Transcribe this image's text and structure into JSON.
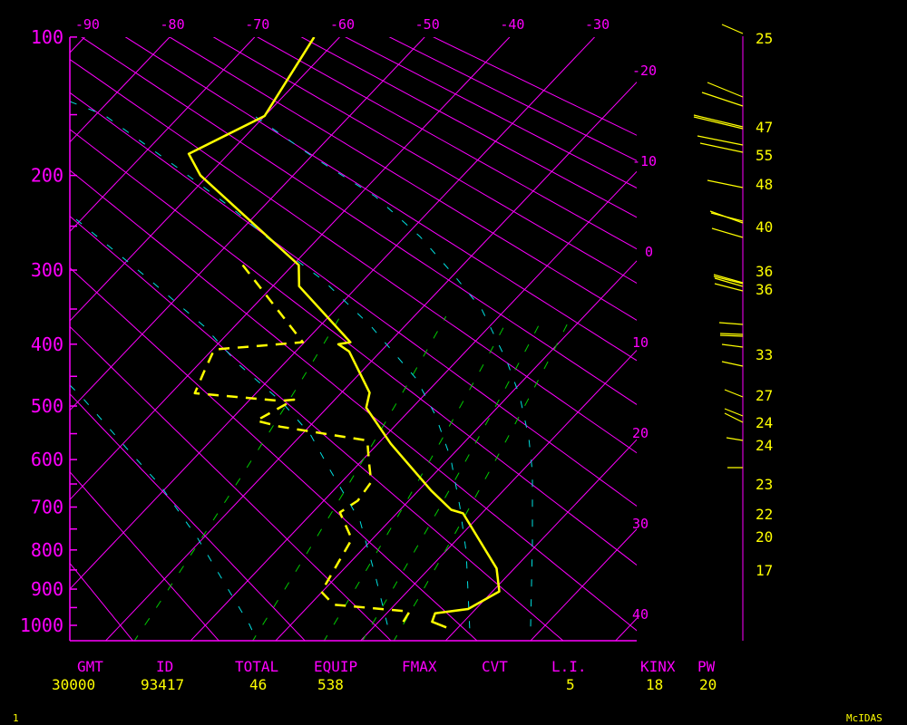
{
  "chart_data": {
    "type": "line",
    "title": "",
    "xlabel": "",
    "ylabel": "",
    "yscale": "pressure (skew-T)",
    "ylim": [
      1000,
      100
    ],
    "grid": true,
    "pressure_ticks": [
      100,
      200,
      300,
      400,
      500,
      600,
      700,
      800,
      900,
      1000
    ],
    "pressure_minor_ticks": [
      150,
      250,
      350,
      450,
      550,
      650,
      750,
      850,
      950
    ],
    "temperature_ticks_top": [
      -90,
      -80,
      -70,
      -60,
      -50,
      -40,
      -30
    ],
    "temperature_ticks_right": [
      -20,
      -10,
      0,
      10,
      20,
      30,
      40
    ],
    "colors": {
      "grid": "#ff00ff",
      "profile": "#ffff00",
      "moist_adiabat": "#00e0e0",
      "mixing_ratio": "#00cc00"
    },
    "series": [
      {
        "line_style": "solid",
        "color": "#ffff00",
        "points": [
          {
            "p": 100,
            "t": -63.0
          },
          {
            "p": 151,
            "t": -60.0
          },
          {
            "p": 181,
            "t": -64.7
          },
          {
            "p": 200,
            "t": -60.9
          },
          {
            "p": 294,
            "t": -39.3
          },
          {
            "p": 320,
            "t": -36.9
          },
          {
            "p": 397,
            "t": -24.6
          },
          {
            "p": 400,
            "t": -25.8
          },
          {
            "p": 411,
            "t": -23.7
          },
          {
            "p": 477,
            "t": -16.7
          },
          {
            "p": 503,
            "t": -15.4
          },
          {
            "p": 569,
            "t": -8.5
          },
          {
            "p": 664,
            "t": 1.5
          },
          {
            "p": 706,
            "t": 6.0
          },
          {
            "p": 714,
            "t": 7.8
          },
          {
            "p": 846,
            "t": 17.9
          },
          {
            "p": 906,
            "t": 20.8
          },
          {
            "p": 954,
            "t": 19.1
          },
          {
            "p": 966,
            "t": 15.7
          },
          {
            "p": 990,
            "t": 16.3
          },
          {
            "p": 1006,
            "t": 18.6
          }
        ]
      },
      {
        "line_style": "dashed",
        "color": "#ffff00",
        "points": [
          {
            "p": 294,
            "t": -45.9
          },
          {
            "p": 397,
            "t": -30.2
          },
          {
            "p": 408,
            "t": -39.8
          },
          {
            "p": 443,
            "t": -38.5
          },
          {
            "p": 478,
            "t": -37.2
          },
          {
            "p": 491,
            "t": -26.3
          },
          {
            "p": 489,
            "t": -24.8
          },
          {
            "p": 526,
            "t": -26.9
          },
          {
            "p": 537,
            "t": -23.4
          },
          {
            "p": 563,
            "t": -11.6
          },
          {
            "p": 605,
            "t": -9.0
          },
          {
            "p": 646,
            "t": -6.5
          },
          {
            "p": 686,
            "t": -6.0
          },
          {
            "p": 712,
            "t": -6.8
          },
          {
            "p": 774,
            "t": -2.4
          },
          {
            "p": 907,
            "t": -0.1
          },
          {
            "p": 942,
            "t": 2.8
          },
          {
            "p": 961,
            "t": 12.5
          },
          {
            "p": 990,
            "t": 12.9
          }
        ]
      }
    ],
    "wind_speeds": [
      "25",
      "47",
      "55",
      "48",
      "40",
      "36",
      "36",
      "33",
      "27",
      "24",
      "24",
      "23",
      "22",
      "20",
      "17"
    ]
  },
  "stats": {
    "labels": {
      "gmt": "GMT",
      "id": "ID",
      "total": "TOTAL",
      "equip": "EQUIP",
      "fmax": "FMAX",
      "cvt": "CVT",
      "li": "L.I.",
      "kinx": "KINX",
      "pw": "PW"
    },
    "values": {
      "gmt": "30000",
      "id": "93417",
      "total": "46",
      "equip": "538",
      "li": "5",
      "kinx": "18",
      "pw": "20"
    }
  },
  "footer": {
    "frame": "1",
    "brand": "McIDAS"
  }
}
